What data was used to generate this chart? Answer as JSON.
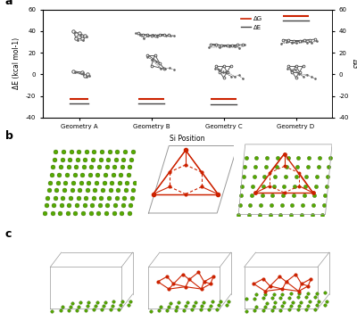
{
  "panel_a": {
    "ylabel_left": "ΔE (kcal mol-1)",
    "ylabel_right": "ΔG",
    "xlabel": "Si Position",
    "ylim": [
      -40,
      60
    ],
    "yticks": [
      -40,
      -20,
      0,
      20,
      40,
      60
    ],
    "geometries": [
      "Geometry A",
      "Geometry B",
      "Geometry C",
      "Geometry D"
    ]
  },
  "colors": {
    "solid_line": "#444444",
    "dash_line": "#666666",
    "dG_color": "#cc2200",
    "dE_color": "#444444",
    "green_atom": "#55aa00",
    "green_edge": "#336600",
    "red_bond": "#cc2200",
    "box_line": "#999999",
    "bg": "#ffffff"
  }
}
